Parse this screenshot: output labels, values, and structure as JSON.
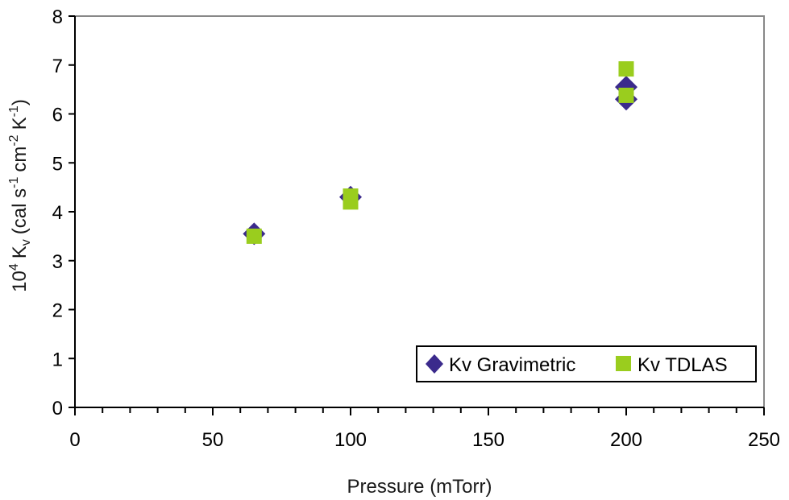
{
  "chart_data": {
    "type": "scatter",
    "title": "",
    "xlabel": "Pressure (mTorr)",
    "ylabel": {
      "prefix": "10",
      "prefix_sup": "4",
      "symbol": "K",
      "symbol_sub": "v",
      "units_open": "(cal s",
      "units_sup1": "-1",
      "units_mid": "cm",
      "units_sup2": "-2",
      "units_k": "K",
      "units_sup3": "-1",
      "units_close": ")"
    },
    "xlim": [
      0,
      250
    ],
    "ylim": [
      0,
      8
    ],
    "x_ticks": [
      0,
      50,
      100,
      150,
      200,
      250
    ],
    "y_ticks": [
      0,
      1,
      2,
      3,
      4,
      5,
      6,
      7,
      8
    ],
    "x_minor_step": 10,
    "grid": false,
    "legend_position": "bottom-right",
    "series": [
      {
        "name": "Kv Gravimetric",
        "marker": "diamond",
        "color": "#3B2A8C",
        "points": [
          {
            "x": 65,
            "y": 3.55
          },
          {
            "x": 100,
            "y": 4.3
          },
          {
            "x": 200,
            "y": 6.55
          },
          {
            "x": 200,
            "y": 6.3
          }
        ]
      },
      {
        "name": "Kv TDLAS",
        "marker": "square",
        "color": "#9ACD1E",
        "points": [
          {
            "x": 65,
            "y": 3.5
          },
          {
            "x": 100,
            "y": 4.32
          },
          {
            "x": 100,
            "y": 4.2
          },
          {
            "x": 200,
            "y": 6.92
          },
          {
            "x": 200,
            "y": 6.38
          }
        ]
      }
    ]
  }
}
